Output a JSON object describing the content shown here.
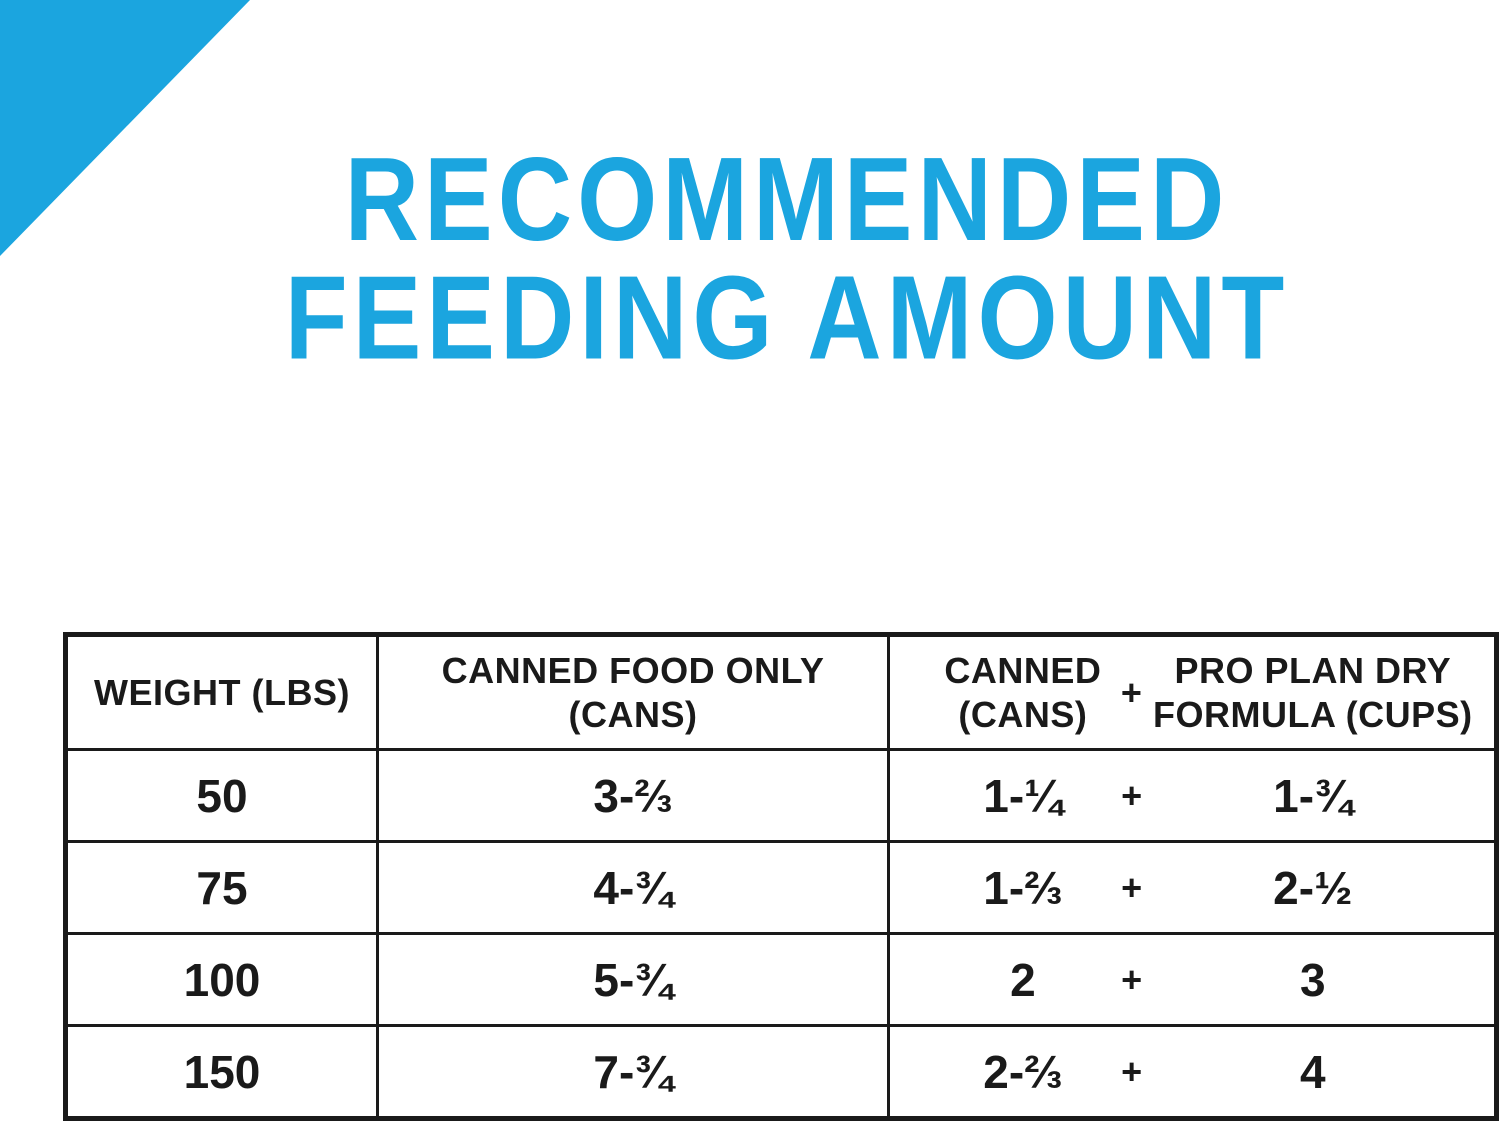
{
  "ui": {
    "colors": {
      "accent": "#1BA5DF",
      "border": "#1A1A1A",
      "text": "#1A1A1A",
      "background": "#FFFFFF"
    },
    "title": {
      "line1": "RECOMMENDED",
      "line2": "FEEDING AMOUNT"
    },
    "table": {
      "header": {
        "col1": "WEIGHT (LBS)",
        "col2_line1": "CANNED FOOD ONLY",
        "col2_line2": "(CANS)",
        "col3_a_line1": "CANNED",
        "col3_a_line2": "(CANS)",
        "col3_plus": "+",
        "col3_b_line1": "PRO PLAN DRY",
        "col3_b_line2": "FORMULA (CUPS)"
      },
      "rows": [
        {
          "weight": "50",
          "canned_only": "3-⅔",
          "canned": "1-¼",
          "plus": "+",
          "dry": "1-¾"
        },
        {
          "weight": "75",
          "canned_only": "4-¾",
          "canned": "1-⅔",
          "plus": "+",
          "dry": "2-½"
        },
        {
          "weight": "100",
          "canned_only": "5-¾",
          "canned": "2",
          "plus": "+",
          "dry": "3"
        },
        {
          "weight": "150",
          "canned_only": "7-¾",
          "canned": "2-⅔",
          "plus": "+",
          "dry": "4"
        }
      ]
    }
  },
  "chart_data": {
    "type": "table",
    "title": "RECOMMENDED FEEDING AMOUNT",
    "columns": [
      "WEIGHT (LBS)",
      "CANNED FOOD ONLY (CANS)",
      "CANNED (CANS)",
      "PRO PLAN DRY FORMULA (CUPS)"
    ],
    "rows": [
      [
        "50",
        "3-⅔",
        "1-¼",
        "1-¾"
      ],
      [
        "75",
        "4-¾",
        "1-⅔",
        "2-½"
      ],
      [
        "100",
        "5-¾",
        "2",
        "3"
      ],
      [
        "150",
        "7-¾",
        "2-⅔",
        "4"
      ]
    ]
  }
}
